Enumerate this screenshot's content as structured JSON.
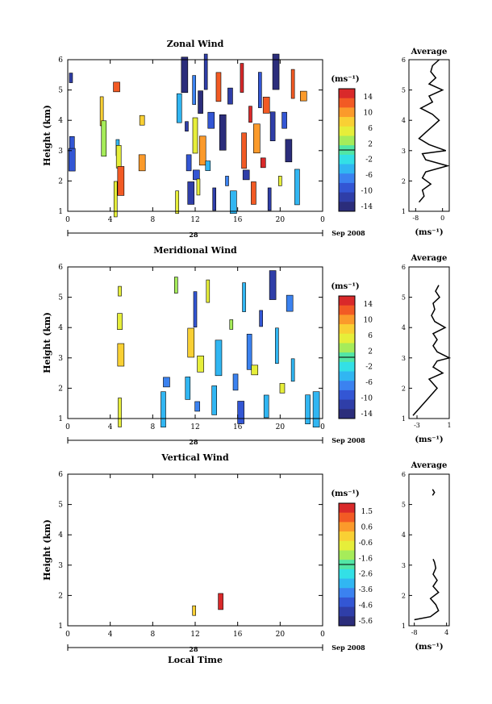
{
  "chart_data": [
    {
      "type": "heatmap",
      "title": "Zonal Wind",
      "ylabel": "Height (km)",
      "xticks": [
        "0",
        "4",
        "8",
        "12",
        "16",
        "20",
        "0"
      ],
      "yticks": [
        "1",
        "2",
        "3",
        "4",
        "5",
        "6"
      ],
      "ylim": [
        1,
        6
      ],
      "date_label": "28",
      "month_label": "Sep 2008",
      "colorbar": {
        "unit": "(ms⁻¹)",
        "ticks": [
          "14",
          "10",
          "6",
          "2",
          "-2",
          "-6",
          "-10",
          "-14"
        ],
        "range": [
          -16,
          16
        ]
      },
      "data": [
        {
          "t": 0.3,
          "h": 5.4,
          "v": -12
        },
        {
          "t": 0.4,
          "h": 3.2,
          "v": -10
        },
        {
          "t": 0.4,
          "h": 2.7,
          "v": -9
        },
        {
          "t": 3.2,
          "h": 4.3,
          "v": 8
        },
        {
          "t": 3.4,
          "h": 3.4,
          "v": 2
        },
        {
          "t": 4.6,
          "h": 5.1,
          "v": 12
        },
        {
          "t": 4.7,
          "h": 3.1,
          "v": -4
        },
        {
          "t": 4.8,
          "h": 2.8,
          "v": 4
        },
        {
          "t": 5.0,
          "h": 2.0,
          "v": 13
        },
        {
          "t": 4.5,
          "h": 1.4,
          "v": 6
        },
        {
          "t": 7.0,
          "h": 4.0,
          "v": 8
        },
        {
          "t": 7.0,
          "h": 2.6,
          "v": 10
        },
        {
          "t": 10.3,
          "h": 1.3,
          "v": 6
        },
        {
          "t": 10.5,
          "h": 4.4,
          "v": -6
        },
        {
          "t": 11.0,
          "h": 5.5,
          "v": -14
        },
        {
          "t": 11.2,
          "h": 3.8,
          "v": -12
        },
        {
          "t": 11.4,
          "h": 2.6,
          "v": -10
        },
        {
          "t": 11.6,
          "h": 1.6,
          "v": -13
        },
        {
          "t": 11.9,
          "h": 5.0,
          "v": -8
        },
        {
          "t": 12.0,
          "h": 3.5,
          "v": 6
        },
        {
          "t": 12.1,
          "h": 2.2,
          "v": -11
        },
        {
          "t": 12.3,
          "h": 1.8,
          "v": 4
        },
        {
          "t": 12.5,
          "h": 4.6,
          "v": -14
        },
        {
          "t": 12.7,
          "h": 3.0,
          "v": 10
        },
        {
          "t": 13.0,
          "h": 5.6,
          "v": -13
        },
        {
          "t": 13.2,
          "h": 2.5,
          "v": -6
        },
        {
          "t": 13.5,
          "h": 4.0,
          "v": -10
        },
        {
          "t": 13.8,
          "h": 1.4,
          "v": -12
        },
        {
          "t": 14.2,
          "h": 5.1,
          "v": 12
        },
        {
          "t": 14.6,
          "h": 3.6,
          "v": -14
        },
        {
          "t": 15.0,
          "h": 2.0,
          "v": -8
        },
        {
          "t": 15.3,
          "h": 4.8,
          "v": -12
        },
        {
          "t": 15.6,
          "h": 1.3,
          "v": -4
        },
        {
          "t": 16.4,
          "h": 5.4,
          "v": 14
        },
        {
          "t": 16.6,
          "h": 3.0,
          "v": 13
        },
        {
          "t": 16.8,
          "h": 2.2,
          "v": -12
        },
        {
          "t": 17.2,
          "h": 4.2,
          "v": 14
        },
        {
          "t": 17.5,
          "h": 1.6,
          "v": 12
        },
        {
          "t": 17.8,
          "h": 3.4,
          "v": 10
        },
        {
          "t": 18.1,
          "h": 5.0,
          "v": -10
        },
        {
          "t": 18.4,
          "h": 2.6,
          "v": 14
        },
        {
          "t": 18.7,
          "h": 4.5,
          "v": 13
        },
        {
          "t": 19.0,
          "h": 1.4,
          "v": -13
        },
        {
          "t": 19.3,
          "h": 3.8,
          "v": -12
        },
        {
          "t": 19.6,
          "h": 5.6,
          "v": -14
        },
        {
          "t": 20.0,
          "h": 2.0,
          "v": 6
        },
        {
          "t": 20.4,
          "h": 4.0,
          "v": -10
        },
        {
          "t": 20.8,
          "h": 3.0,
          "v": -14
        },
        {
          "t": 21.2,
          "h": 5.2,
          "v": 12
        },
        {
          "t": 21.6,
          "h": 1.8,
          "v": -6
        },
        {
          "t": 22.2,
          "h": 4.8,
          "v": 10
        }
      ],
      "average": {
        "title": "Average",
        "xlabel": "(ms⁻¹)",
        "xticks": [
          "-8",
          "0"
        ],
        "xlim": [
          -10,
          2
        ],
        "profile": [
          [
            1.3,
            -7
          ],
          [
            1.5,
            -5.5
          ],
          [
            1.7,
            -6
          ],
          [
            1.9,
            -3.5
          ],
          [
            2.1,
            -6
          ],
          [
            2.3,
            -5
          ],
          [
            2.5,
            1.5
          ],
          [
            2.7,
            -5
          ],
          [
            2.9,
            -6
          ],
          [
            3.0,
            1
          ],
          [
            3.2,
            -4
          ],
          [
            3.4,
            -7
          ],
          [
            3.6,
            -5
          ],
          [
            3.8,
            -3
          ],
          [
            4.0,
            -1
          ],
          [
            4.2,
            -3
          ],
          [
            4.4,
            -6.5
          ],
          [
            4.6,
            -3
          ],
          [
            4.8,
            -4
          ],
          [
            5.0,
            0
          ],
          [
            5.2,
            -4
          ],
          [
            5.4,
            -2
          ],
          [
            5.6,
            -3.5
          ],
          [
            5.8,
            -3
          ],
          [
            6.0,
            -1
          ]
        ]
      }
    },
    {
      "type": "heatmap",
      "title": "Meridional Wind",
      "ylabel": "Height (km)",
      "xticks": [
        "0",
        "4",
        "8",
        "12",
        "16",
        "20",
        "0"
      ],
      "yticks": [
        "1",
        "2",
        "3",
        "4",
        "5",
        "6"
      ],
      "ylim": [
        1,
        6
      ],
      "date_label": "28",
      "month_label": "Sep 2008",
      "colorbar": {
        "unit": "(ms⁻¹)",
        "ticks": [
          "14",
          "10",
          "6",
          "2",
          "-2",
          "-6",
          "-10",
          "-14"
        ],
        "range": [
          -16,
          16
        ]
      },
      "data": [
        {
          "t": 4.9,
          "h": 5.2,
          "v": 4
        },
        {
          "t": 4.9,
          "h": 4.2,
          "v": 6
        },
        {
          "t": 5.0,
          "h": 3.1,
          "v": 8
        },
        {
          "t": 4.9,
          "h": 1.2,
          "v": 4
        },
        {
          "t": 9.0,
          "h": 1.3,
          "v": -6
        },
        {
          "t": 9.3,
          "h": 2.2,
          "v": -8
        },
        {
          "t": 10.2,
          "h": 5.4,
          "v": 2
        },
        {
          "t": 11.3,
          "h": 2.0,
          "v": -4
        },
        {
          "t": 11.6,
          "h": 3.5,
          "v": 8
        },
        {
          "t": 12.0,
          "h": 4.6,
          "v": -10
        },
        {
          "t": 12.2,
          "h": 1.4,
          "v": -8
        },
        {
          "t": 12.5,
          "h": 2.8,
          "v": 4
        },
        {
          "t": 13.2,
          "h": 5.2,
          "v": 6
        },
        {
          "t": 13.8,
          "h": 1.6,
          "v": -6
        },
        {
          "t": 14.2,
          "h": 3.0,
          "v": -4
        },
        {
          "t": 15.4,
          "h": 4.1,
          "v": 2
        },
        {
          "t": 15.8,
          "h": 2.2,
          "v": -8
        },
        {
          "t": 16.3,
          "h": 1.2,
          "v": -10
        },
        {
          "t": 16.6,
          "h": 5.0,
          "v": -6
        },
        {
          "t": 17.1,
          "h": 3.2,
          "v": -8
        },
        {
          "t": 17.6,
          "h": 2.6,
          "v": 4
        },
        {
          "t": 18.2,
          "h": 4.3,
          "v": -10
        },
        {
          "t": 18.7,
          "h": 1.4,
          "v": -4
        },
        {
          "t": 19.3,
          "h": 5.4,
          "v": -12
        },
        {
          "t": 19.7,
          "h": 3.4,
          "v": -6
        },
        {
          "t": 20.2,
          "h": 2.0,
          "v": 6
        },
        {
          "t": 20.9,
          "h": 4.8,
          "v": -8
        },
        {
          "t": 21.2,
          "h": 2.6,
          "v": -4
        },
        {
          "t": 22.6,
          "h": 1.3,
          "v": -6
        },
        {
          "t": 23.4,
          "h": 1.3,
          "v": -4
        }
      ],
      "average": {
        "title": "Average",
        "xlabel": "(ms⁻¹)",
        "xticks": [
          "-3",
          "1"
        ],
        "xlim": [
          -4,
          1
        ],
        "profile": [
          [
            1.1,
            -3.5
          ],
          [
            1.4,
            -2.5
          ],
          [
            1.7,
            -1.5
          ],
          [
            2.0,
            -0.5
          ],
          [
            2.3,
            -1.5
          ],
          [
            2.5,
            0.2
          ],
          [
            2.7,
            -1
          ],
          [
            2.9,
            -0.5
          ],
          [
            3.0,
            1
          ],
          [
            3.2,
            -0.5
          ],
          [
            3.4,
            -1
          ],
          [
            3.6,
            -0.5
          ],
          [
            3.8,
            -1
          ],
          [
            4.0,
            0.5
          ],
          [
            4.2,
            -0.8
          ],
          [
            4.4,
            -1.2
          ],
          [
            4.6,
            -0.8
          ],
          [
            4.8,
            -1
          ],
          [
            5.0,
            -0.2
          ],
          [
            5.2,
            -0.7
          ],
          [
            5.4,
            -0.3
          ]
        ]
      }
    },
    {
      "type": "heatmap",
      "title": "Vertical Wind",
      "ylabel": "Height (km)",
      "xlabel": "Local Time",
      "xticks": [
        "0",
        "4",
        "8",
        "12",
        "16",
        "20",
        "0"
      ],
      "yticks": [
        "1",
        "2",
        "3",
        "4",
        "5",
        "6"
      ],
      "ylim": [
        1,
        6
      ],
      "date_label": "28",
      "month_label": "Sep 2008",
      "colorbar": {
        "unit": "(ms⁻¹)",
        "ticks": [
          "1.5",
          "0.6",
          "-0.6",
          "-1.6",
          "-2.6",
          "-3.6",
          "-4.6",
          "-5.6"
        ],
        "range": [
          -6.4,
          2.4
        ]
      },
      "data": [
        {
          "t": 11.9,
          "h": 1.5,
          "v": -0.2
        },
        {
          "t": 14.4,
          "h": 1.8,
          "v": 2.0
        }
      ],
      "average": {
        "title": "Average",
        "xlabel": "(ms⁻¹)",
        "xticks": [
          "-8",
          "4"
        ],
        "xlim": [
          -10,
          5
        ],
        "profile": [
          [
            1.2,
            -8
          ],
          [
            1.3,
            -2
          ],
          [
            1.5,
            1
          ],
          [
            1.7,
            0
          ],
          [
            1.9,
            -2
          ],
          [
            2.1,
            1
          ],
          [
            2.3,
            -1
          ],
          [
            2.5,
            0.5
          ],
          [
            2.7,
            -1
          ],
          [
            2.9,
            0
          ],
          [
            3.1,
            -0.5
          ],
          [
            3.2,
            -1
          ]
        ],
        "extra_profile": [
          [
            5.5,
            -1.2
          ],
          [
            5.4,
            -0.5
          ],
          [
            5.3,
            -1.2
          ]
        ]
      }
    }
  ],
  "colors": {
    "colormap": [
      "#2b2d7b",
      "#2f3ea8",
      "#3356d4",
      "#3b82f0",
      "#31b6f2",
      "#33e0e6",
      "#52e6a6",
      "#a6ec5a",
      "#e6ee3a",
      "#f9d034",
      "#fb9a2b",
      "#f25a24",
      "#d9292a"
    ]
  }
}
